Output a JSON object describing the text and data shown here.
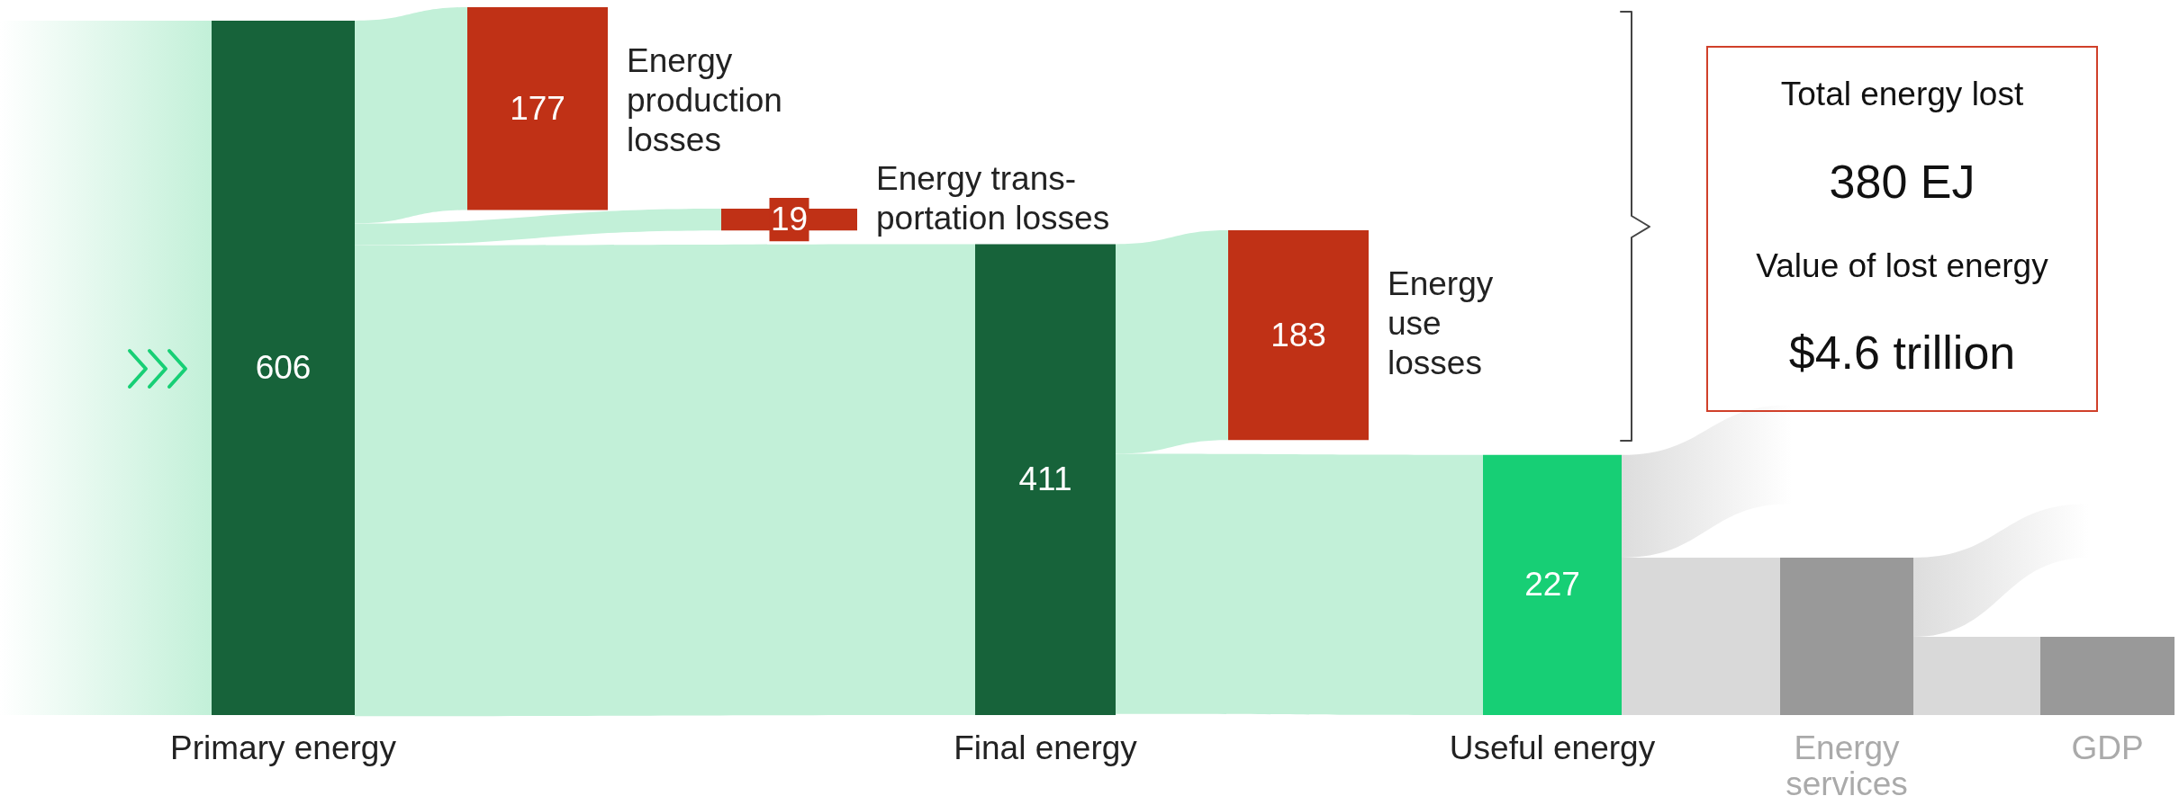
{
  "chart_data": {
    "type": "other",
    "categories": [
      "Primary energy",
      "Energy production losses",
      "Energy trans-portation losses",
      "Final energy",
      "Energy use losses",
      "Useful energy",
      "Energy services",
      "GDP"
    ],
    "values": [
      606,
      177,
      19,
      411,
      183,
      227,
      null,
      null
    ],
    "data_labels": true,
    "colors": [
      "#17633a",
      "#c03116",
      "#c03116",
      "#17633a",
      "#c03116",
      "#17cf75",
      "#999999",
      "#999999"
    ],
    "annotations": [
      "Total energy lost",
      "380 EJ",
      "Value of lost energy",
      "$4.6 trillion"
    ]
  }
}
